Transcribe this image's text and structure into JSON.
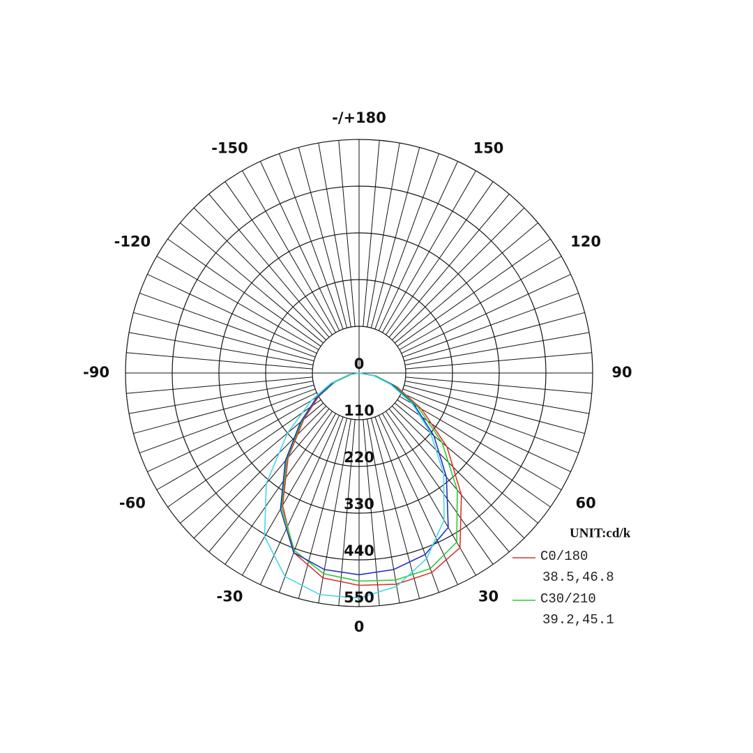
{
  "chart_data": {
    "type": "polar",
    "unit_label": "UNIT:cd/k",
    "angles": [
      -90,
      -80,
      -70,
      -60,
      -50,
      -40,
      -30,
      -20,
      -10,
      0,
      10,
      20,
      30,
      40,
      50,
      60,
      70,
      80,
      90
    ],
    "angle_ticks": [
      {
        "value": 180,
        "label": "-/+180"
      },
      150,
      120,
      90,
      60,
      30,
      0,
      -30,
      -60,
      -90,
      -120,
      -150
    ],
    "rlim": [
      0,
      550
    ],
    "rticks": [
      0,
      110,
      220,
      330,
      440,
      550
    ],
    "grid": true,
    "series": [
      {
        "name": "C0/180",
        "beam_label": "38.5,46.8",
        "color": "#e03030",
        "values": [
          0,
          20,
          60,
          110,
          170,
          260,
          360,
          450,
          490,
          500,
          505,
          500,
          475,
          375,
          270,
          170,
          95,
          40,
          0
        ]
      },
      {
        "name": "C30/210",
        "beam_label": "39.2,45.1",
        "color": "#30c830",
        "values": [
          0,
          20,
          60,
          115,
          175,
          265,
          365,
          445,
          480,
          490,
          495,
          490,
          460,
          360,
          255,
          160,
          90,
          40,
          0
        ]
      },
      {
        "name": null,
        "color": "#2030c0",
        "values": [
          0,
          25,
          65,
          115,
          180,
          270,
          370,
          450,
          470,
          475,
          470,
          455,
          420,
          320,
          230,
          150,
          85,
          35,
          0
        ]
      },
      {
        "name": null,
        "color": "#40d8e8",
        "values": [
          0,
          25,
          70,
          130,
          220,
          340,
          445,
          510,
          530,
          530,
          510,
          465,
          400,
          310,
          220,
          145,
          80,
          35,
          0
        ]
      }
    ]
  }
}
